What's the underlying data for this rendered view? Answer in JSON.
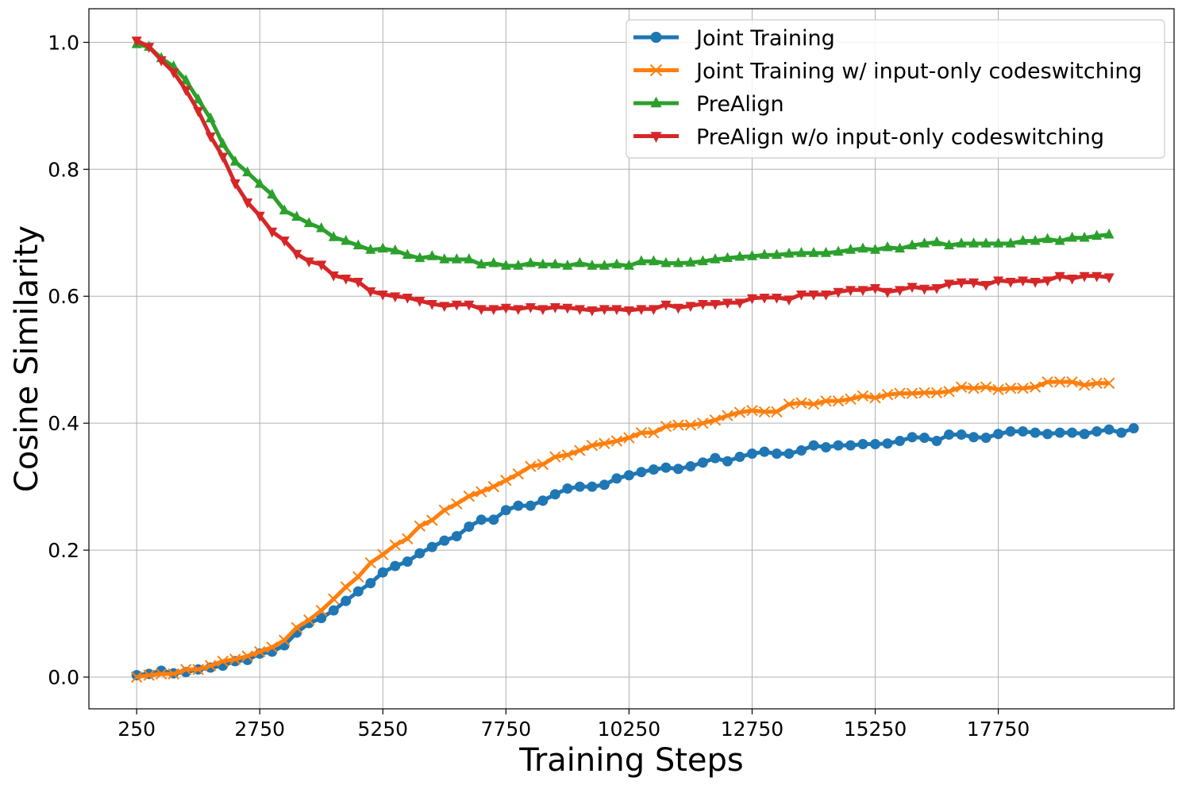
{
  "chart_data": {
    "type": "line",
    "title": "",
    "xlabel": "Training Steps",
    "ylabel": "Cosine Similarity",
    "xlim": [
      -720,
      21320
    ],
    "ylim": [
      -0.05,
      1.053
    ],
    "x_ticks": [
      250,
      2750,
      5250,
      7750,
      10250,
      12750,
      15250,
      17750
    ],
    "x_tick_labels": [
      "250",
      "2750",
      "5250",
      "7750",
      "10250",
      "12750",
      "15250",
      "17750"
    ],
    "y_ticks": [
      0.0,
      0.2,
      0.4,
      0.6,
      0.8,
      1.0
    ],
    "y_tick_labels": [
      "0.0",
      "0.2",
      "0.4",
      "0.6",
      "0.8",
      "1.0"
    ],
    "grid": true,
    "legend_position": "top-right",
    "x_start": 250,
    "x_step": 250,
    "series": [
      {
        "name": "Joint Training",
        "color": "#1f77b4",
        "marker": "circle",
        "values": [
          0.003,
          0.005,
          0.01,
          0.006,
          0.008,
          0.012,
          0.015,
          0.018,
          0.025,
          0.027,
          0.037,
          0.04,
          0.05,
          0.07,
          0.085,
          0.093,
          0.105,
          0.12,
          0.135,
          0.148,
          0.165,
          0.175,
          0.182,
          0.195,
          0.205,
          0.215,
          0.222,
          0.237,
          0.248,
          0.248,
          0.263,
          0.27,
          0.27,
          0.278,
          0.288,
          0.297,
          0.3,
          0.3,
          0.303,
          0.313,
          0.318,
          0.323,
          0.327,
          0.33,
          0.328,
          0.332,
          0.338,
          0.345,
          0.34,
          0.347,
          0.352,
          0.355,
          0.352,
          0.352,
          0.357,
          0.365,
          0.362,
          0.365,
          0.365,
          0.367,
          0.367,
          0.368,
          0.372,
          0.378,
          0.377,
          0.372,
          0.382,
          0.382,
          0.378,
          0.377,
          0.383,
          0.387,
          0.387,
          0.385,
          0.383,
          0.385,
          0.385,
          0.383,
          0.387,
          0.39,
          0.385,
          0.392
        ]
      },
      {
        "name": "Joint Training w/ input-only codeswitching",
        "color": "#ff7f0e",
        "marker": "x",
        "values": [
          0.0,
          0.003,
          0.005,
          0.005,
          0.012,
          0.012,
          0.018,
          0.025,
          0.028,
          0.033,
          0.04,
          0.047,
          0.058,
          0.078,
          0.09,
          0.105,
          0.123,
          0.142,
          0.158,
          0.18,
          0.193,
          0.208,
          0.218,
          0.238,
          0.247,
          0.263,
          0.273,
          0.285,
          0.292,
          0.3,
          0.31,
          0.32,
          0.332,
          0.335,
          0.347,
          0.35,
          0.357,
          0.365,
          0.368,
          0.372,
          0.377,
          0.385,
          0.385,
          0.395,
          0.397,
          0.397,
          0.4,
          0.405,
          0.412,
          0.417,
          0.42,
          0.418,
          0.418,
          0.43,
          0.432,
          0.43,
          0.435,
          0.435,
          0.438,
          0.443,
          0.44,
          0.445,
          0.447,
          0.447,
          0.448,
          0.448,
          0.45,
          0.457,
          0.455,
          0.457,
          0.453,
          0.455,
          0.455,
          0.457,
          0.465,
          0.465,
          0.465,
          0.46,
          0.463,
          0.463
        ]
      },
      {
        "name": "PreAlign",
        "color": "#2ca02c",
        "marker": "triangle-up",
        "values": [
          0.997,
          0.993,
          0.975,
          0.962,
          0.94,
          0.91,
          0.88,
          0.84,
          0.812,
          0.795,
          0.777,
          0.76,
          0.735,
          0.725,
          0.715,
          0.707,
          0.693,
          0.687,
          0.68,
          0.673,
          0.675,
          0.672,
          0.665,
          0.66,
          0.663,
          0.658,
          0.658,
          0.658,
          0.65,
          0.652,
          0.648,
          0.648,
          0.652,
          0.65,
          0.65,
          0.648,
          0.652,
          0.648,
          0.648,
          0.65,
          0.648,
          0.655,
          0.655,
          0.652,
          0.652,
          0.653,
          0.655,
          0.658,
          0.66,
          0.662,
          0.663,
          0.665,
          0.665,
          0.667,
          0.668,
          0.668,
          0.668,
          0.67,
          0.673,
          0.675,
          0.673,
          0.677,
          0.675,
          0.68,
          0.683,
          0.685,
          0.68,
          0.683,
          0.683,
          0.683,
          0.683,
          0.683,
          0.687,
          0.687,
          0.69,
          0.687,
          0.692,
          0.692,
          0.695,
          0.697
        ]
      },
      {
        "name": "PreAlign w/o input-only codeswitching",
        "color": "#d62728",
        "marker": "triangle-down",
        "values": [
          1.003,
          0.993,
          0.972,
          0.953,
          0.925,
          0.892,
          0.852,
          0.82,
          0.778,
          0.748,
          0.727,
          0.702,
          0.688,
          0.667,
          0.655,
          0.65,
          0.633,
          0.628,
          0.623,
          0.608,
          0.603,
          0.6,
          0.598,
          0.593,
          0.588,
          0.585,
          0.587,
          0.587,
          0.58,
          0.58,
          0.582,
          0.58,
          0.583,
          0.58,
          0.583,
          0.582,
          0.58,
          0.578,
          0.58,
          0.58,
          0.578,
          0.58,
          0.58,
          0.587,
          0.582,
          0.585,
          0.588,
          0.588,
          0.59,
          0.59,
          0.597,
          0.598,
          0.598,
          0.595,
          0.603,
          0.603,
          0.603,
          0.607,
          0.61,
          0.61,
          0.613,
          0.607,
          0.61,
          0.615,
          0.612,
          0.613,
          0.62,
          0.622,
          0.622,
          0.618,
          0.625,
          0.623,
          0.625,
          0.623,
          0.625,
          0.632,
          0.628,
          0.632,
          0.632,
          0.63
        ]
      }
    ]
  }
}
